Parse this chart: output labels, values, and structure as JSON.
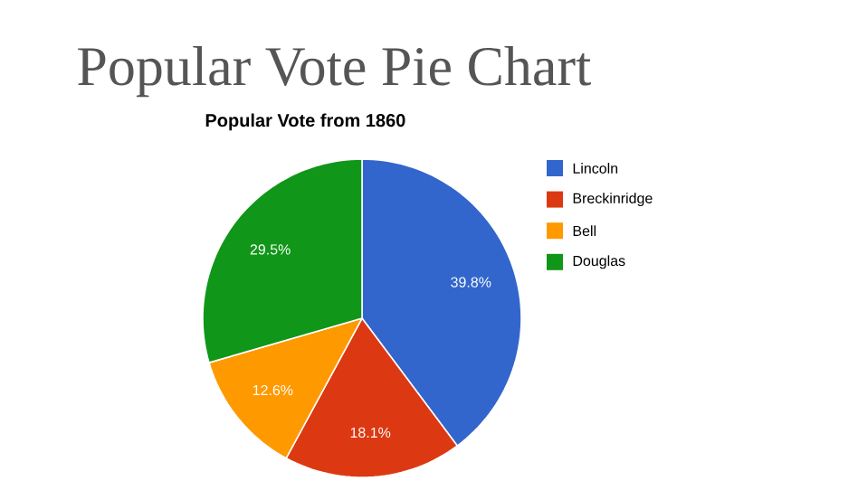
{
  "chart_data": {
    "type": "pie",
    "title": "Popular Vote Pie Chart",
    "subtitle": "Popular Vote from 1860",
    "categories": [
      "Lincoln",
      "Breckinridge",
      "Bell",
      "Douglas"
    ],
    "values": [
      39.8,
      18.1,
      12.6,
      29.5
    ],
    "colors": [
      "#3366cc",
      "#dc3912",
      "#ff9900",
      "#109618"
    ],
    "value_labels": [
      "39.8%",
      "18.1%",
      "12.6%",
      "29.5%"
    ],
    "legend": "right"
  }
}
